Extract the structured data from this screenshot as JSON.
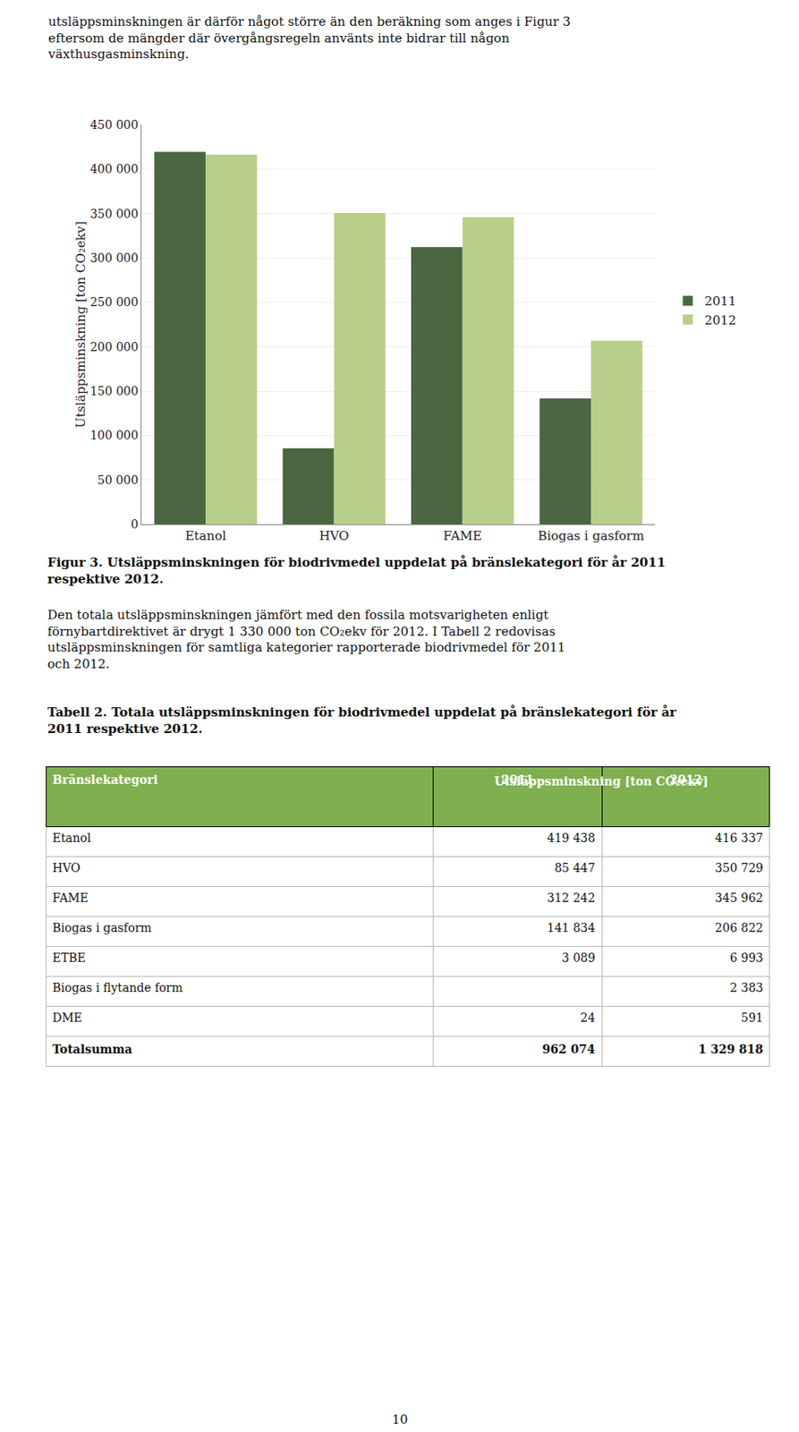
{
  "chart_data": [
    {
      "type": "bar",
      "categories": [
        "Etanol",
        "HVO",
        "FAME",
        "Biogas i gasform"
      ],
      "series": [
        {
          "name": "2011",
          "color": "#4a6741",
          "values": [
            419438,
            85447,
            312242,
            141834
          ]
        },
        {
          "name": "2012",
          "color": "#b8cf8a",
          "values": [
            416337,
            350729,
            345962,
            206822
          ]
        }
      ],
      "ylabel": "Utsläppsminskning [ton CO₂ekv]",
      "ylim": [
        0,
        450000
      ],
      "yticks": [
        0,
        {
          "value": 50000,
          "label": "50 000"
        },
        {
          "value": 100000,
          "label": "100 000"
        },
        {
          "value": 150000,
          "label": "150 000"
        },
        {
          "value": 200000,
          "label": "200 000"
        },
        {
          "value": 250000,
          "label": "250 000"
        },
        {
          "value": 300000,
          "label": "300 000"
        },
        {
          "value": 350000,
          "label": "350 000"
        },
        {
          "value": 400000,
          "label": "400 000"
        },
        {
          "value": 450000,
          "label": "450 000"
        }
      ],
      "grid": true,
      "legend": "right",
      "annotations": [
        "utsläppsminskningen är därför något större än den beräkning som anges i Figur 3\neftersom de mängder där övergångsregeln använts inte bidrar till någon\nväxthusgasminskning.",
        "Figur 3. Utsläppsminskningen för biodrivmedel uppdelat på bränslekategori för år 2011\nrespektive 2012.",
        "Den totala utsläppsminskningen jämfört med den fossila motsvarigheten enligt\nförnybartdirektivet är drygt 1 330 000 ton CO₂ekv för 2012. I Tabell 2 redovisas\nutsläppsminskningen för samtliga kategorier rapporterade biodrivmedel för 2011\noch 2012.",
        "Tabell 2. Totala utsläppsminskningen för biodrivmedel uppdelat på bränslekategori för år\n2011 respektive 2012.",
        "10"
      ]
    },
    {
      "type": "table",
      "header_top": "Utsläppsminskning [ton CO₂ekv]",
      "columns": [
        "Bränslekategori",
        "2011",
        "2012"
      ],
      "rows": [
        [
          "Etanol",
          "419 438",
          "416 337"
        ],
        [
          "HVO",
          "85 447",
          "350 729"
        ],
        [
          "FAME",
          "312 242",
          "345 962"
        ],
        [
          "Biogas i gasform",
          "141 834",
          "206 822"
        ],
        [
          "ETBE",
          "3 089",
          "6 993"
        ],
        [
          "Biogas i flytande form",
          null,
          "2 383"
        ],
        [
          "DME",
          "24",
          "591"
        ],
        [
          "Totalsumma",
          "962 074",
          "1 329 818"
        ]
      ],
      "color": "#7faf4e"
    }
  ]
}
